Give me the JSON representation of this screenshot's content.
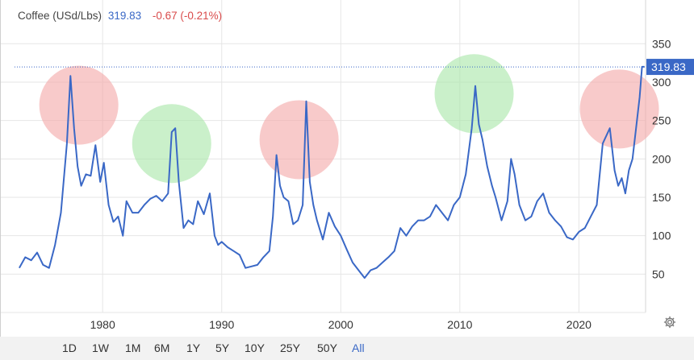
{
  "header": {
    "name": "Coffee (USd/Lbs)",
    "price": "319.83",
    "change": "-0.67 (-0.21%)"
  },
  "price_tag": "319.83",
  "ranges": [
    "1D",
    "1W",
    "1M",
    "6M",
    "1Y",
    "5Y",
    "10Y",
    "25Y",
    "50Y",
    "All"
  ],
  "active_range": "All",
  "settings_icon": "gear-icon",
  "colors": {
    "line": "#3a68c6",
    "negative": "#d94b4b",
    "circle_red": "#f4a6a6",
    "circle_green": "#a6e6a6"
  },
  "chart_data": {
    "type": "line",
    "title": "Coffee (USd/Lbs)",
    "xlabel": "",
    "ylabel": "",
    "xlim": [
      1972.6,
      2025.6
    ],
    "ylim": [
      0,
      365
    ],
    "x_ticks": [
      1980,
      1990,
      2000,
      2010,
      2020
    ],
    "y_ticks": [
      50,
      100,
      150,
      200,
      250,
      300,
      350
    ],
    "grid": true,
    "last_value": 319.83,
    "series": [
      {
        "x": [
          1973.0,
          1973.5,
          1974.0,
          1974.5,
          1975.0,
          1975.5,
          1976.0,
          1976.5,
          1977.0,
          1977.3,
          1977.6,
          1977.9,
          1978.2,
          1978.6,
          1979.0,
          1979.4,
          1979.8,
          1980.1,
          1980.5,
          1980.9,
          1981.3,
          1981.7,
          1982.0,
          1982.5,
          1983.0,
          1983.5,
          1984.0,
          1984.5,
          1985.0,
          1985.5,
          1985.8,
          1986.1,
          1986.4,
          1986.8,
          1987.2,
          1987.6,
          1988.0,
          1988.5,
          1989.0,
          1989.4,
          1989.7,
          1990.0,
          1990.5,
          1991.0,
          1991.5,
          1992.0,
          1992.5,
          1993.0,
          1993.5,
          1994.0,
          1994.3,
          1994.6,
          1994.9,
          1995.2,
          1995.6,
          1996.0,
          1996.4,
          1996.8,
          1997.1,
          1997.4,
          1997.7,
          1998.0,
          1998.5,
          1999.0,
          1999.5,
          2000.0,
          2000.5,
          2001.0,
          2001.5,
          2002.0,
          2002.5,
          2003.0,
          2003.5,
          2004.0,
          2004.5,
          2005.0,
          2005.5,
          2006.0,
          2006.5,
          2007.0,
          2007.5,
          2008.0,
          2008.5,
          2009.0,
          2009.5,
          2010.0,
          2010.5,
          2011.0,
          2011.3,
          2011.6,
          2011.9,
          2012.3,
          2012.7,
          2013.0,
          2013.5,
          2014.0,
          2014.3,
          2014.6,
          2015.0,
          2015.5,
          2016.0,
          2016.5,
          2017.0,
          2017.5,
          2018.0,
          2018.5,
          2019.0,
          2019.5,
          2020.0,
          2020.5,
          2021.0,
          2021.5,
          2022.0,
          2022.3,
          2022.6,
          2023.0,
          2023.3,
          2023.6,
          2023.9,
          2024.2,
          2024.5,
          2024.8,
          2025.1,
          2025.3,
          2025.5
        ],
        "values": [
          58,
          72,
          68,
          78,
          62,
          58,
          88,
          130,
          220,
          308,
          240,
          190,
          165,
          180,
          178,
          218,
          170,
          195,
          140,
          118,
          125,
          100,
          145,
          130,
          130,
          140,
          148,
          152,
          145,
          155,
          235,
          240,
          170,
          110,
          120,
          115,
          145,
          128,
          155,
          100,
          88,
          92,
          85,
          80,
          75,
          58,
          60,
          62,
          72,
          80,
          125,
          205,
          165,
          150,
          145,
          115,
          120,
          140,
          275,
          170,
          140,
          120,
          95,
          130,
          112,
          100,
          82,
          65,
          55,
          45,
          55,
          58,
          65,
          72,
          80,
          110,
          100,
          112,
          120,
          120,
          125,
          140,
          130,
          120,
          140,
          150,
          180,
          240,
          295,
          245,
          225,
          190,
          165,
          150,
          120,
          145,
          200,
          180,
          140,
          120,
          125,
          145,
          155,
          130,
          120,
          112,
          98,
          95,
          105,
          110,
          125,
          140,
          220,
          230,
          240,
          185,
          165,
          175,
          155,
          185,
          200,
          240,
          280,
          320,
          320
        ]
      }
    ]
  },
  "annotations": [
    {
      "shape": "circle",
      "color": "red",
      "x": 1978.0,
      "y": 270
    },
    {
      "shape": "circle",
      "color": "green",
      "x": 1985.8,
      "y": 220
    },
    {
      "shape": "circle",
      "color": "red",
      "x": 1996.5,
      "y": 225
    },
    {
      "shape": "circle",
      "color": "green",
      "x": 2011.2,
      "y": 285
    },
    {
      "shape": "circle",
      "color": "red",
      "x": 2023.4,
      "y": 265
    }
  ]
}
